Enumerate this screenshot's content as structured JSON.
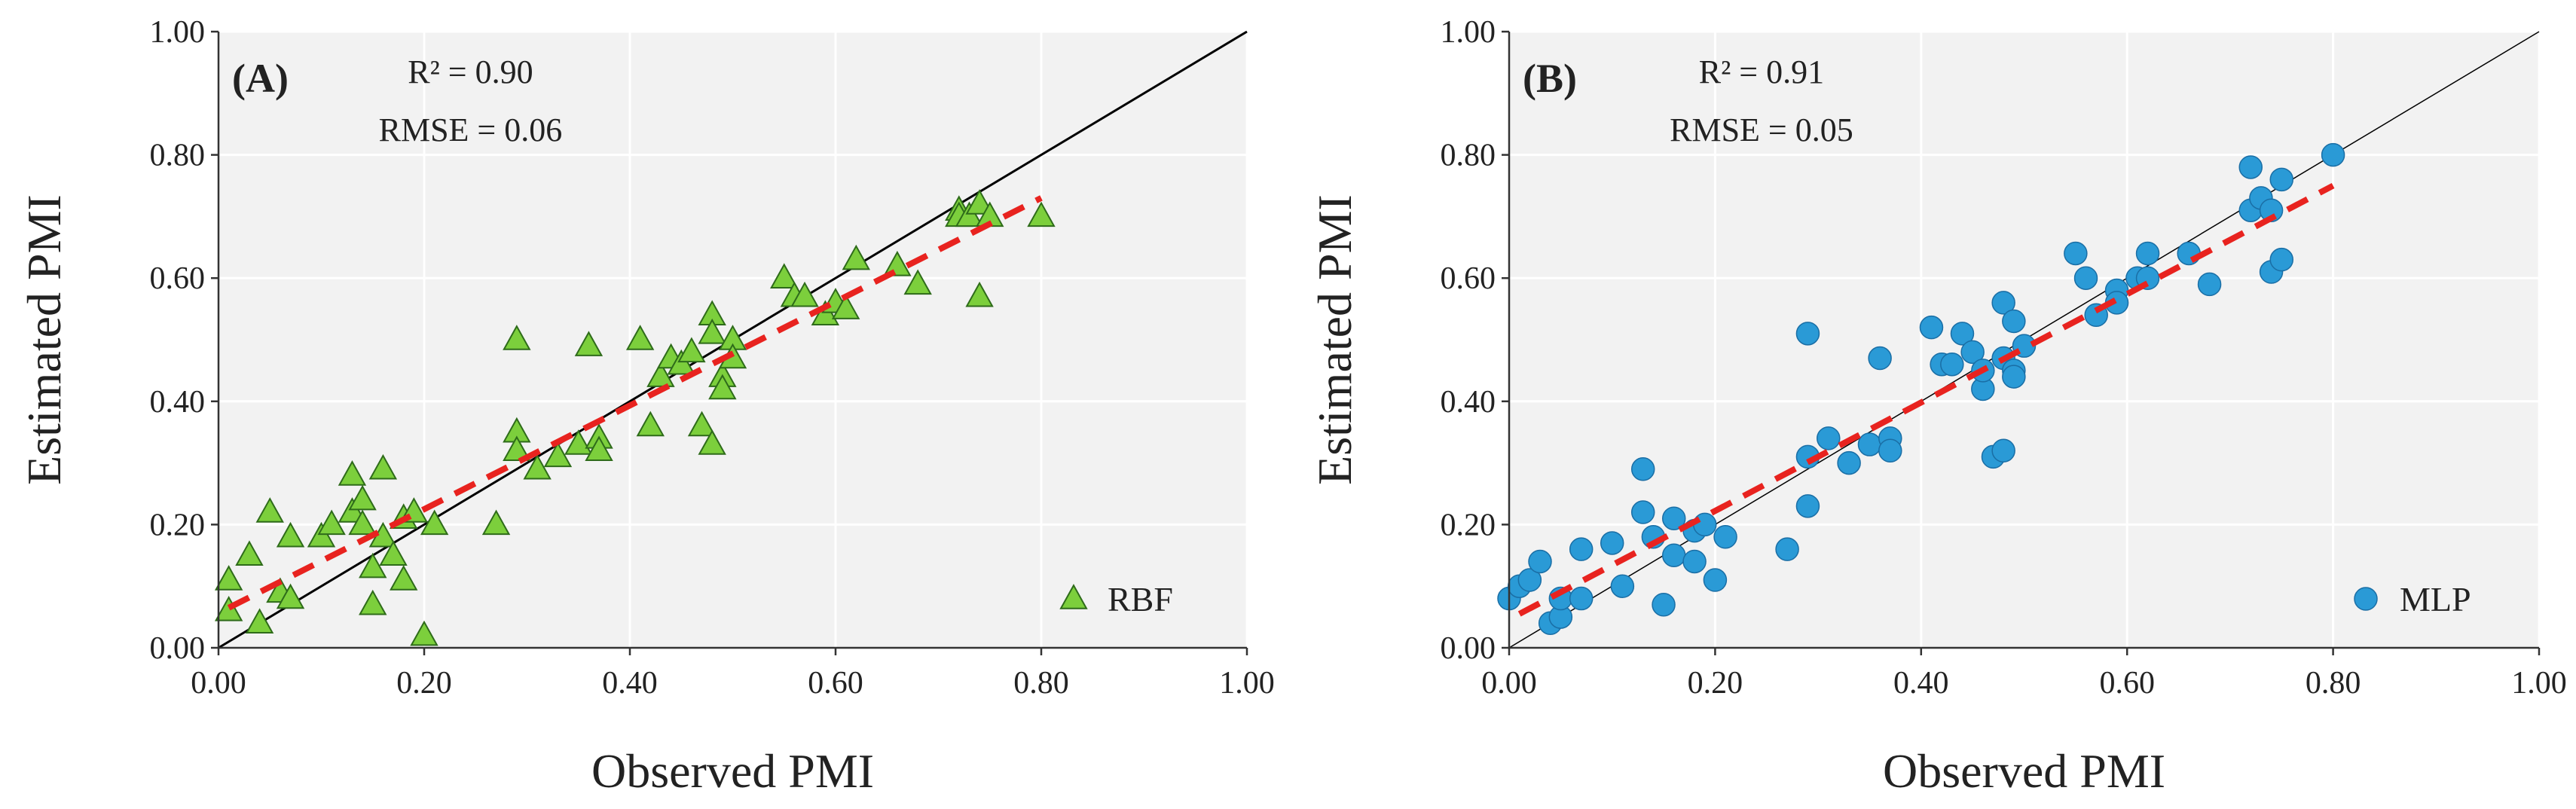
{
  "chart_data": [
    {
      "type": "scatter",
      "panel_label": "(A)",
      "stats": {
        "r2": "R² = 0.90",
        "rmse": "RMSE =  0.06"
      },
      "xlabel": "Observed PMI",
      "ylabel": "Estimated PMI",
      "xlim": [
        0,
        1
      ],
      "ylim": [
        0,
        1
      ],
      "xticks": [
        "0.00",
        "0.20",
        "0.40",
        "0.60",
        "0.80",
        "1.00"
      ],
      "yticks": [
        "0.00",
        "0.20",
        "0.40",
        "0.60",
        "0.80",
        "1.00"
      ],
      "grid": true,
      "legend": {
        "label": "RBF",
        "position": "bottom-right"
      },
      "marker": {
        "shape": "triangle",
        "color": "#7ccf3c",
        "edge": "#2e6b1a"
      },
      "identity_line": {
        "from": [
          0,
          0
        ],
        "to": [
          1,
          1
        ],
        "color": "#000000"
      },
      "fit_line": {
        "from": [
          0.01,
          0.065
        ],
        "to": [
          0.8,
          0.73
        ],
        "color": "#e8231f"
      },
      "series": [
        {
          "name": "RBF",
          "points": [
            [
              0.01,
              0.11
            ],
            [
              0.01,
              0.06
            ],
            [
              0.03,
              0.15
            ],
            [
              0.04,
              0.04
            ],
            [
              0.05,
              0.22
            ],
            [
              0.06,
              0.09
            ],
            [
              0.07,
              0.18
            ],
            [
              0.07,
              0.08
            ],
            [
              0.1,
              0.18
            ],
            [
              0.11,
              0.2
            ],
            [
              0.13,
              0.28
            ],
            [
              0.13,
              0.22
            ],
            [
              0.14,
              0.24
            ],
            [
              0.14,
              0.2
            ],
            [
              0.15,
              0.13
            ],
            [
              0.15,
              0.07
            ],
            [
              0.16,
              0.29
            ],
            [
              0.16,
              0.18
            ],
            [
              0.17,
              0.15
            ],
            [
              0.18,
              0.21
            ],
            [
              0.18,
              0.11
            ],
            [
              0.19,
              0.22
            ],
            [
              0.2,
              0.02
            ],
            [
              0.21,
              0.2
            ],
            [
              0.27,
              0.2
            ],
            [
              0.29,
              0.5
            ],
            [
              0.29,
              0.35
            ],
            [
              0.29,
              0.32
            ],
            [
              0.31,
              0.29
            ],
            [
              0.33,
              0.31
            ],
            [
              0.35,
              0.33
            ],
            [
              0.36,
              0.49
            ],
            [
              0.37,
              0.34
            ],
            [
              0.37,
              0.32
            ],
            [
              0.41,
              0.5
            ],
            [
              0.42,
              0.36
            ],
            [
              0.43,
              0.44
            ],
            [
              0.44,
              0.47
            ],
            [
              0.45,
              0.46
            ],
            [
              0.46,
              0.48
            ],
            [
              0.47,
              0.36
            ],
            [
              0.48,
              0.54
            ],
            [
              0.48,
              0.51
            ],
            [
              0.48,
              0.33
            ],
            [
              0.49,
              0.44
            ],
            [
              0.49,
              0.42
            ],
            [
              0.5,
              0.5
            ],
            [
              0.5,
              0.47
            ],
            [
              0.55,
              0.6
            ],
            [
              0.56,
              0.57
            ],
            [
              0.57,
              0.57
            ],
            [
              0.59,
              0.54
            ],
            [
              0.6,
              0.56
            ],
            [
              0.61,
              0.55
            ],
            [
              0.62,
              0.63
            ],
            [
              0.66,
              0.62
            ],
            [
              0.68,
              0.59
            ],
            [
              0.72,
              0.71
            ],
            [
              0.72,
              0.7
            ],
            [
              0.73,
              0.7
            ],
            [
              0.74,
              0.72
            ],
            [
              0.74,
              0.57
            ],
            [
              0.75,
              0.7
            ],
            [
              0.8,
              0.7
            ]
          ]
        }
      ]
    },
    {
      "type": "scatter",
      "panel_label": "(B)",
      "stats": {
        "r2": "R² = 0.91",
        "rmse": "RMSE = 0.05"
      },
      "xlabel": "Observed PMI",
      "ylabel": "Estimated PMI",
      "xlim": [
        0,
        1
      ],
      "ylim": [
        0,
        1
      ],
      "xticks": [
        "0.00",
        "0.20",
        "0.40",
        "0.60",
        "0.80",
        "1.00"
      ],
      "yticks": [
        "0.00",
        "0.20",
        "0.40",
        "0.60",
        "0.80",
        "1.00"
      ],
      "grid": true,
      "legend": {
        "label": "MLP",
        "position": "bottom-right"
      },
      "marker": {
        "shape": "circle",
        "color": "#2a9ad6",
        "edge": "#1a6ea5"
      },
      "identity_line": {
        "from": [
          0,
          0
        ],
        "to": [
          1,
          1
        ],
        "color": "#000000"
      },
      "fit_line": {
        "from": [
          0.01,
          0.055
        ],
        "to": [
          0.8,
          0.75
        ],
        "color": "#e8231f"
      },
      "series": [
        {
          "name": "MLP",
          "points": [
            [
              0.0,
              0.08
            ],
            [
              0.01,
              0.1
            ],
            [
              0.02,
              0.11
            ],
            [
              0.03,
              0.14
            ],
            [
              0.04,
              0.04
            ],
            [
              0.05,
              0.05
            ],
            [
              0.05,
              0.08
            ],
            [
              0.07,
              0.16
            ],
            [
              0.07,
              0.08
            ],
            [
              0.1,
              0.17
            ],
            [
              0.11,
              0.1
            ],
            [
              0.13,
              0.29
            ],
            [
              0.13,
              0.22
            ],
            [
              0.14,
              0.18
            ],
            [
              0.15,
              0.07
            ],
            [
              0.16,
              0.21
            ],
            [
              0.16,
              0.15
            ],
            [
              0.18,
              0.19
            ],
            [
              0.18,
              0.14
            ],
            [
              0.19,
              0.2
            ],
            [
              0.2,
              0.11
            ],
            [
              0.21,
              0.18
            ],
            [
              0.27,
              0.16
            ],
            [
              0.29,
              0.51
            ],
            [
              0.29,
              0.31
            ],
            [
              0.29,
              0.23
            ],
            [
              0.31,
              0.34
            ],
            [
              0.33,
              0.3
            ],
            [
              0.35,
              0.33
            ],
            [
              0.36,
              0.47
            ],
            [
              0.37,
              0.34
            ],
            [
              0.37,
              0.32
            ],
            [
              0.41,
              0.52
            ],
            [
              0.42,
              0.46
            ],
            [
              0.43,
              0.46
            ],
            [
              0.44,
              0.51
            ],
            [
              0.45,
              0.48
            ],
            [
              0.46,
              0.42
            ],
            [
              0.46,
              0.45
            ],
            [
              0.47,
              0.31
            ],
            [
              0.48,
              0.56
            ],
            [
              0.48,
              0.47
            ],
            [
              0.48,
              0.32
            ],
            [
              0.49,
              0.53
            ],
            [
              0.49,
              0.45
            ],
            [
              0.49,
              0.44
            ],
            [
              0.5,
              0.49
            ],
            [
              0.55,
              0.64
            ],
            [
              0.56,
              0.6
            ],
            [
              0.57,
              0.54
            ],
            [
              0.59,
              0.58
            ],
            [
              0.59,
              0.56
            ],
            [
              0.61,
              0.6
            ],
            [
              0.62,
              0.64
            ],
            [
              0.62,
              0.6
            ],
            [
              0.66,
              0.64
            ],
            [
              0.68,
              0.59
            ],
            [
              0.72,
              0.78
            ],
            [
              0.72,
              0.71
            ],
            [
              0.73,
              0.73
            ],
            [
              0.74,
              0.71
            ],
            [
              0.74,
              0.61
            ],
            [
              0.75,
              0.76
            ],
            [
              0.75,
              0.63
            ],
            [
              0.8,
              0.8
            ]
          ]
        }
      ]
    }
  ]
}
